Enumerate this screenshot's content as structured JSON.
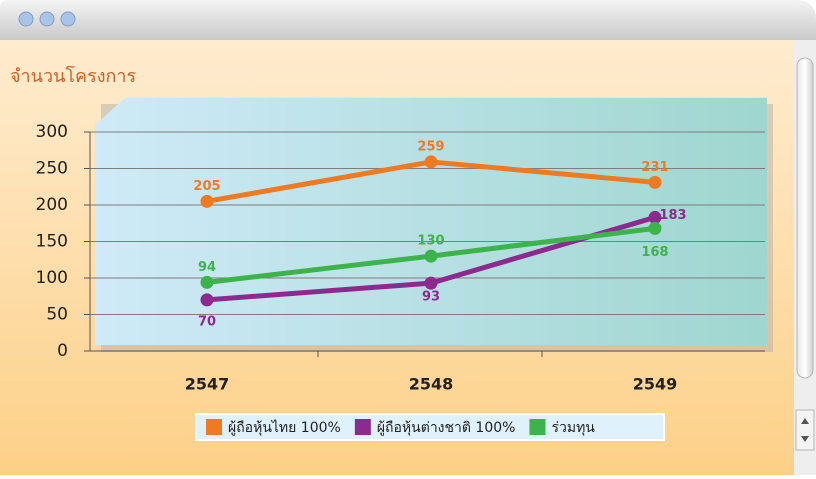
{
  "chart_data": {
    "type": "line",
    "y_axis_label": "จำนวนโครงการ",
    "categories": [
      "2547",
      "2548",
      "2549"
    ],
    "series": [
      {
        "name": "ผู้ถือหุ้นไทย 100%",
        "color": "#f07a22",
        "values": [
          205,
          259,
          231
        ]
      },
      {
        "name": "ผู้ถือหุ้นต่างชาติ 100%",
        "color": "#8c2a90",
        "values": [
          70,
          93,
          183
        ]
      },
      {
        "name": "ร่วมทุน",
        "color": "#3db34b",
        "values": [
          94,
          130,
          168
        ]
      }
    ],
    "ylim": [
      0,
      300
    ],
    "yticks": [
      0,
      50,
      100,
      150,
      200,
      250,
      300
    ],
    "grid": true,
    "legend": "bottom"
  }
}
